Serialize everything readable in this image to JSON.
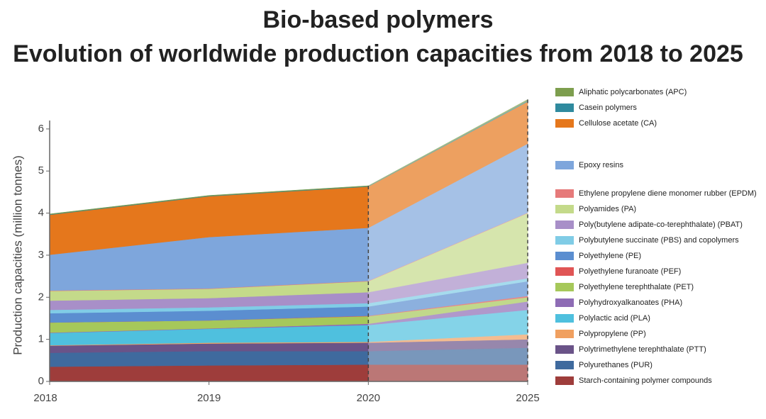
{
  "chart_data": {
    "type": "stacked_area",
    "title": "Bio-based polymers",
    "subtitle": "Evolution of worldwide production capacities from 2018 to 2025",
    "y_label": "Production capacities (million tonnes)",
    "categories": [
      "2018",
      "2019",
      "2020",
      "2025"
    ],
    "ylim": [
      0,
      6.2
    ],
    "yticks": [
      0,
      1,
      2,
      3,
      4,
      5,
      6
    ],
    "series": [
      {
        "name": "Starch-containing polymer compounds",
        "color": "#9e3d3b",
        "values": [
          0.35,
          0.38,
          0.4,
          0.4
        ]
      },
      {
        "name": "Polyurethanes (PUR)",
        "color": "#3f6a9e",
        "values": [
          0.33,
          0.34,
          0.32,
          0.4
        ]
      },
      {
        "name": "Polytrimethylene terephthalate (PTT)",
        "color": "#6a5388",
        "values": [
          0.17,
          0.18,
          0.2,
          0.2
        ]
      },
      {
        "name": "Polypropylene (PP)",
        "color": "#f0a060",
        "values": [
          0.01,
          0.02,
          0.02,
          0.12
        ]
      },
      {
        "name": "Polylactic acid (PLA)",
        "color": "#4fc0de",
        "values": [
          0.29,
          0.33,
          0.4,
          0.58
        ]
      },
      {
        "name": "Polyhydroxyalkanoates (PHA)",
        "color": "#8e6cb5",
        "values": [
          0.01,
          0.01,
          0.03,
          0.2
        ]
      },
      {
        "name": "Polyethylene terephthalate (PET)",
        "color": "#a6c85a",
        "values": [
          0.24,
          0.19,
          0.18,
          0.1
        ]
      },
      {
        "name": "Polyethylene furanoate (PEF)",
        "color": "#e05555",
        "values": [
          0,
          0,
          0.01,
          0.03
        ]
      },
      {
        "name": "Polyethylene (PE)",
        "color": "#5b8ed0",
        "values": [
          0.22,
          0.23,
          0.22,
          0.35
        ]
      },
      {
        "name": "Polybutylene succinate (PBS) and copolymers",
        "color": "#80cce6",
        "values": [
          0.08,
          0.08,
          0.08,
          0.07
        ]
      },
      {
        "name": "Poly(butylene adipate-co-terephthalate) (PBAT)",
        "color": "#a88fc8",
        "values": [
          0.22,
          0.22,
          0.26,
          0.37
        ]
      },
      {
        "name": "Polyamides (PA)",
        "color": "#c4da8a",
        "values": [
          0.23,
          0.22,
          0.26,
          1.18
        ]
      },
      {
        "name": "Ethylene propylene diene monomer rubber (EPDM)",
        "color": "#e67a7a",
        "values": [
          0.01,
          0.01,
          0.01,
          0.01
        ]
      },
      {
        "name": "Epoxy resins",
        "color": "#7ea6dc",
        "values": [
          0.85,
          1.22,
          1.26,
          1.64
        ]
      },
      {
        "name": "Cellulose acetate (CA)",
        "color": "#e5771c",
        "values": [
          0.95,
          0.97,
          0.98,
          1.0
        ]
      },
      {
        "name": "Casein polymers",
        "color": "#2f8a9e",
        "values": [
          0.01,
          0.01,
          0.01,
          0.02
        ]
      },
      {
        "name": "Aliphatic polycarbonates (APC)",
        "color": "#7d9e4e",
        "values": [
          0.01,
          0.01,
          0.01,
          0.03
        ]
      }
    ]
  }
}
